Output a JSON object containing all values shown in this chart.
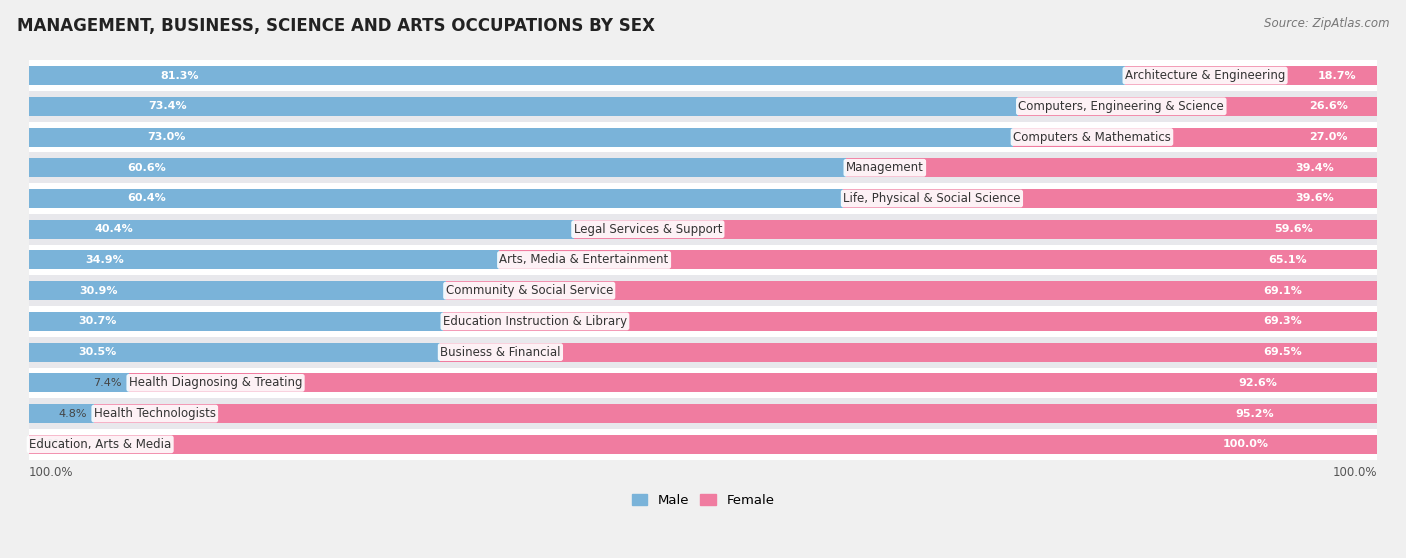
{
  "title": "MANAGEMENT, BUSINESS, SCIENCE AND ARTS OCCUPATIONS BY SEX",
  "source": "Source: ZipAtlas.com",
  "categories": [
    "Architecture & Engineering",
    "Computers, Engineering & Science",
    "Computers & Mathematics",
    "Management",
    "Life, Physical & Social Science",
    "Legal Services & Support",
    "Arts, Media & Entertainment",
    "Community & Social Service",
    "Education Instruction & Library",
    "Business & Financial",
    "Health Diagnosing & Treating",
    "Health Technologists",
    "Education, Arts & Media"
  ],
  "male": [
    81.3,
    73.4,
    73.0,
    60.6,
    60.4,
    40.4,
    34.9,
    30.9,
    30.7,
    30.5,
    7.4,
    4.8,
    0.0
  ],
  "female": [
    18.7,
    26.6,
    27.0,
    39.4,
    39.6,
    59.6,
    65.1,
    69.1,
    69.3,
    69.5,
    92.6,
    95.2,
    100.0
  ],
  "male_color": "#7ab3d9",
  "female_color": "#f07ca0",
  "bg_color": "#f0f0f0",
  "row_colors": [
    "#ffffff",
    "#e8e8ec"
  ],
  "title_fontsize": 12,
  "label_fontsize": 8.5,
  "value_fontsize": 8.0,
  "legend_fontsize": 9.5,
  "source_fontsize": 8.5
}
